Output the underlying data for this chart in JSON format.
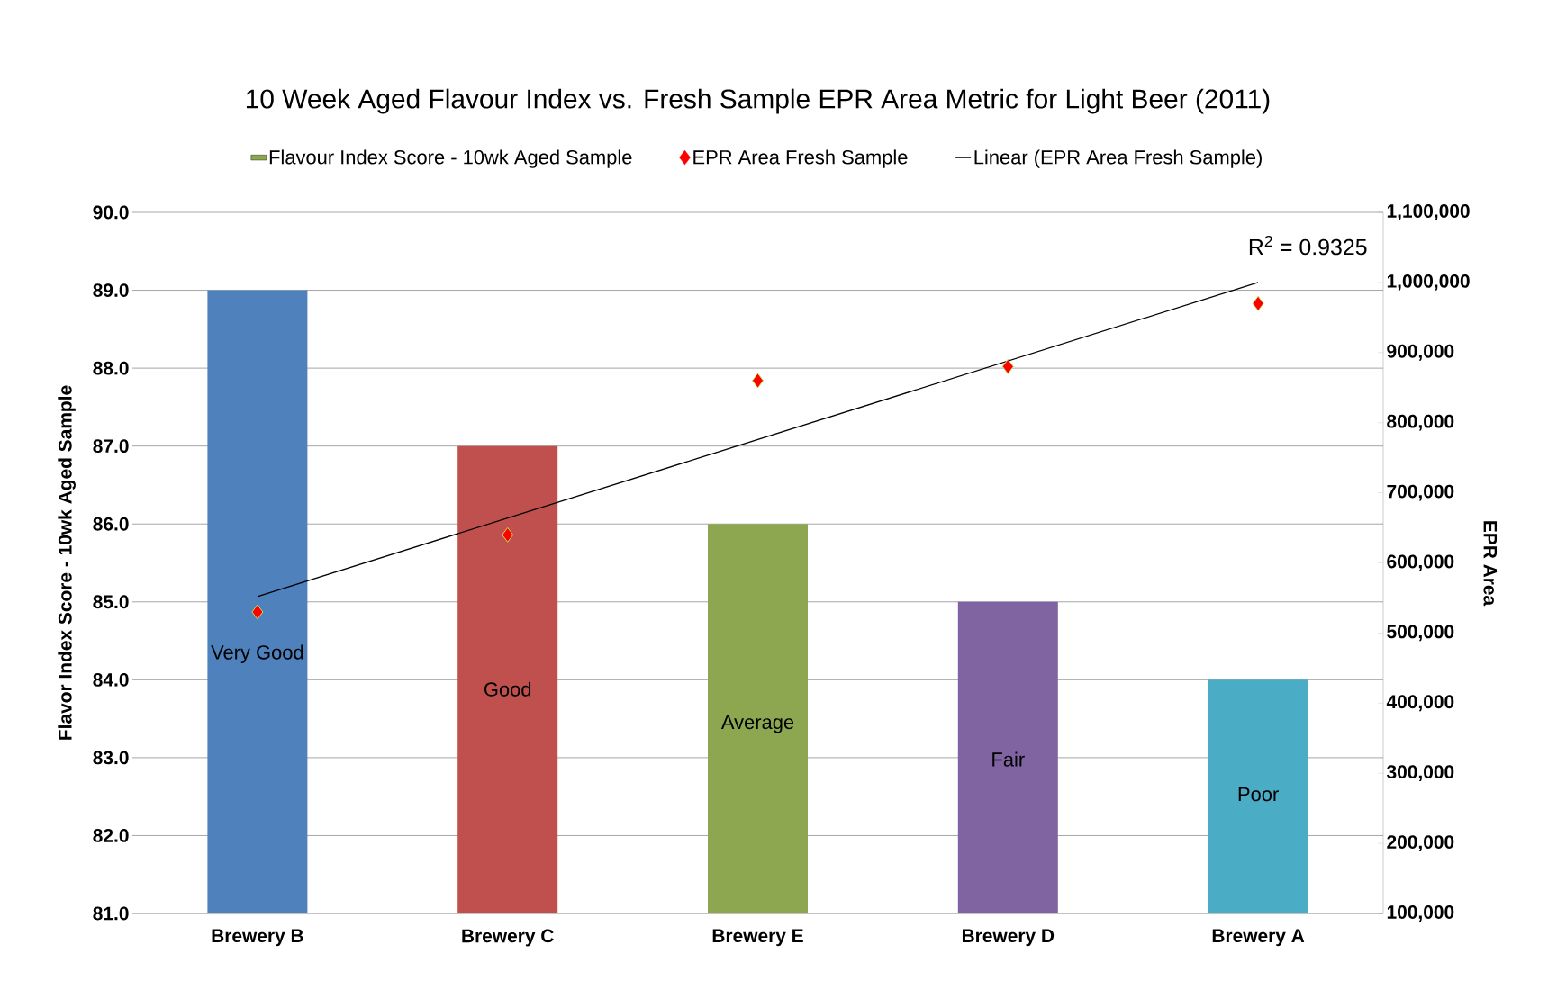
{
  "chart_data": {
    "type": "bar",
    "title": "10 Week Aged Flavour Index  vs. Fresh Sample EPR Area Metric for Light Beer (2011)",
    "categories": [
      "Brewery B",
      "Brewery C",
      "Brewery E",
      "Brewery D",
      "Brewery A"
    ],
    "ylabel": "Flavor Index Score - 10wk Aged Sample",
    "y2label": "EPR Area",
    "series": [
      {
        "name": "Flavour Index Score - 10wk Aged Sample",
        "color": "#8da750",
        "colors": [
          "#4f81bd",
          "#c0504d",
          "#8da750",
          "#8064a2",
          "#4bacc6"
        ],
        "values": [
          89,
          87,
          86,
          85,
          84
        ]
      },
      {
        "name": "EPR Area Fresh Sample",
        "type": "scatter",
        "axis": "y2",
        "color": "#ff0000",
        "marker": "diamond",
        "values": [
          530000,
          640000,
          860000,
          880000,
          970000
        ]
      },
      {
        "name": "Linear (EPR Area Fresh Sample)",
        "type": "line",
        "axis": "y2",
        "color": "#000000",
        "x": [
          "Brewery B",
          "Brewery A"
        ],
        "values": [
          552000,
          1000000
        ]
      }
    ],
    "ylim": [
      81,
      90
    ],
    "yticks": [
      {
        "value": 81,
        "label": "81.0"
      },
      {
        "value": 82,
        "label": "82.0"
      },
      {
        "value": 83,
        "label": "83.0"
      },
      {
        "value": 84,
        "label": "84.0"
      },
      {
        "value": 85,
        "label": "85.0"
      },
      {
        "value": 86,
        "label": "86.0"
      },
      {
        "value": 87,
        "label": "87.0"
      },
      {
        "value": 88,
        "label": "88.0"
      },
      {
        "value": 89,
        "label": "89.0"
      },
      {
        "value": 90,
        "label": "90.0"
      }
    ],
    "y2lim": [
      100000,
      1100000
    ],
    "y2ticks": [
      {
        "value": 100000,
        "label": "100,000"
      },
      {
        "value": 200000,
        "label": "200,000"
      },
      {
        "value": 300000,
        "label": "300,000"
      },
      {
        "value": 400000,
        "label": "400,000"
      },
      {
        "value": 500000,
        "label": "500,000"
      },
      {
        "value": 600000,
        "label": "600,000"
      },
      {
        "value": 700000,
        "label": "700,000"
      },
      {
        "value": 800000,
        "label": "800,000"
      },
      {
        "value": 900000,
        "label": "900,000"
      },
      {
        "value": 1000000,
        "label": "1,000,000"
      },
      {
        "value": 1100000,
        "label": "1,100,000"
      }
    ],
    "annotations": [
      "Very Good",
      "Good",
      "Average",
      "Fair",
      "Poor",
      "R$^{2}$ = 0.9325"
    ],
    "grid": "y",
    "legend": "top"
  }
}
